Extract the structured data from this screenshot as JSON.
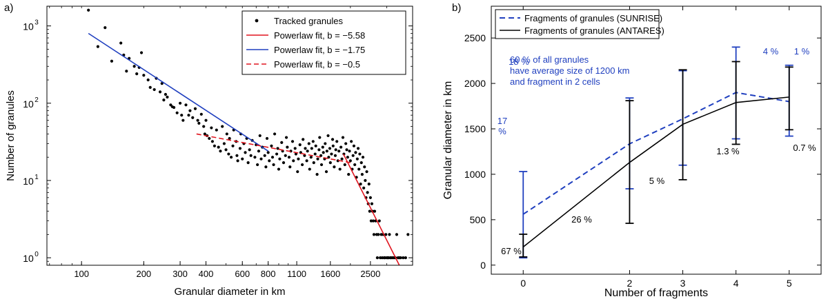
{
  "chart_data": [
    {
      "panel_label": "a)",
      "type": "scatter",
      "xlabel": "Granular diameter in km",
      "ylabel": "Number of granules",
      "x_scale": "log",
      "y_scale": "log",
      "xlim": [
        68,
        4000
      ],
      "ylim": [
        0.8,
        1800
      ],
      "x_ticks": [
        100,
        200,
        300,
        400,
        600,
        800,
        1100,
        1600,
        2500
      ],
      "y_ticks": [
        1,
        10,
        100,
        1000
      ],
      "y_tick_labels": [
        {
          "base": "10",
          "exp": "0"
        },
        {
          "base": "10",
          "exp": "1"
        },
        {
          "base": "10",
          "exp": "2"
        },
        {
          "base": "10",
          "exp": "3"
        }
      ],
      "legend_position": "top-right",
      "legend": [
        {
          "label": "Tracked granules",
          "style": "dot",
          "color": "#000000"
        },
        {
          "label": "Powerlaw fit, b = −5.58",
          "style": "solid",
          "color": "#e0141e"
        },
        {
          "label": "Powerlaw fit, b = −1.75",
          "style": "solid",
          "color": "#1f3fbf"
        },
        {
          "label": "Powerlaw fit, b = −0.5",
          "style": "dashed",
          "color": "#e0141e"
        }
      ],
      "fits": [
        {
          "b": -1.75,
          "x": [
            108,
            800
          ],
          "y": [
            800,
            24
          ],
          "color": "#1f3fbf",
          "dashed": false
        },
        {
          "b": -0.5,
          "x": [
            360,
            2000
          ],
          "y": [
            40,
            17
          ],
          "color": "#e0141e",
          "dashed": true
        },
        {
          "b": -5.58,
          "x": [
            1850,
            3450
          ],
          "y": [
            22,
            0.8
          ],
          "color": "#e0141e",
          "dashed": false
        }
      ],
      "points": [
        [
          108,
          1600
        ],
        [
          120,
          540
        ],
        [
          130,
          950
        ],
        [
          140,
          350
        ],
        [
          155,
          600
        ],
        [
          160,
          420
        ],
        [
          165,
          260
        ],
        [
          170,
          380
        ],
        [
          180,
          300
        ],
        [
          185,
          240
        ],
        [
          190,
          290
        ],
        [
          195,
          450
        ],
        [
          200,
          230
        ],
        [
          210,
          200
        ],
        [
          215,
          160
        ],
        [
          225,
          150
        ],
        [
          230,
          210
        ],
        [
          240,
          140
        ],
        [
          245,
          180
        ],
        [
          250,
          110
        ],
        [
          255,
          130
        ],
        [
          260,
          120
        ],
        [
          270,
          95
        ],
        [
          275,
          90
        ],
        [
          280,
          88
        ],
        [
          290,
          75
        ],
        [
          300,
          100
        ],
        [
          305,
          70
        ],
        [
          310,
          60
        ],
        [
          320,
          95
        ],
        [
          330,
          70
        ],
        [
          335,
          80
        ],
        [
          345,
          65
        ],
        [
          355,
          85
        ],
        [
          365,
          60
        ],
        [
          370,
          55
        ],
        [
          380,
          72
        ],
        [
          390,
          50
        ],
        [
          395,
          40
        ],
        [
          400,
          60
        ],
        [
          405,
          38
        ],
        [
          415,
          35
        ],
        [
          425,
          48
        ],
        [
          430,
          32
        ],
        [
          440,
          28
        ],
        [
          450,
          45
        ],
        [
          460,
          27
        ],
        [
          470,
          24
        ],
        [
          480,
          50
        ],
        [
          490,
          30
        ],
        [
          500,
          25
        ],
        [
          505,
          40
        ],
        [
          515,
          22
        ],
        [
          520,
          35
        ],
        [
          530,
          20
        ],
        [
          540,
          28
        ],
        [
          545,
          45
        ],
        [
          560,
          32
        ],
        [
          565,
          21
        ],
        [
          570,
          18
        ],
        [
          585,
          26
        ],
        [
          590,
          40
        ],
        [
          600,
          19
        ],
        [
          610,
          30
        ],
        [
          620,
          23
        ],
        [
          630,
          35
        ],
        [
          640,
          17
        ],
        [
          650,
          25
        ],
        [
          660,
          21
        ],
        [
          670,
          33
        ],
        [
          690,
          20
        ],
        [
          700,
          29
        ],
        [
          710,
          16
        ],
        [
          720,
          24
        ],
        [
          730,
          38
        ],
        [
          740,
          19
        ],
        [
          750,
          27
        ],
        [
          770,
          21
        ],
        [
          780,
          15
        ],
        [
          790,
          35
        ],
        [
          800,
          23
        ],
        [
          810,
          18
        ],
        [
          830,
          28
        ],
        [
          840,
          20
        ],
        [
          850,
          16
        ],
        [
          860,
          40
        ],
        [
          880,
          22
        ],
        [
          890,
          26
        ],
        [
          900,
          14
        ],
        [
          910,
          19
        ],
        [
          930,
          31
        ],
        [
          940,
          24
        ],
        [
          950,
          17
        ],
        [
          970,
          21
        ],
        [
          980,
          36
        ],
        [
          990,
          27
        ],
        [
          1010,
          20
        ],
        [
          1020,
          15
        ],
        [
          1030,
          24
        ],
        [
          1050,
          32
        ],
        [
          1060,
          18
        ],
        [
          1080,
          26
        ],
        [
          1090,
          22
        ],
        [
          1110,
          13
        ],
        [
          1120,
          19
        ],
        [
          1140,
          29
        ],
        [
          1150,
          23
        ],
        [
          1170,
          16
        ],
        [
          1180,
          34
        ],
        [
          1200,
          21
        ],
        [
          1210,
          26
        ],
        [
          1230,
          18
        ],
        [
          1240,
          24
        ],
        [
          1260,
          30
        ],
        [
          1270,
          14
        ],
        [
          1290,
          20
        ],
        [
          1300,
          26
        ],
        [
          1320,
          32
        ],
        [
          1330,
          17
        ],
        [
          1350,
          22
        ],
        [
          1360,
          28
        ],
        [
          1380,
          12
        ],
        [
          1390,
          19
        ],
        [
          1410,
          25
        ],
        [
          1420,
          36
        ],
        [
          1440,
          21
        ],
        [
          1450,
          16
        ],
        [
          1470,
          27
        ],
        [
          1480,
          23
        ],
        [
          1500,
          19
        ],
        [
          1510,
          30
        ],
        [
          1530,
          13
        ],
        [
          1540,
          24
        ],
        [
          1560,
          38
        ],
        [
          1570,
          20
        ],
        [
          1590,
          26
        ],
        [
          1600,
          17
        ],
        [
          1620,
          22
        ],
        [
          1640,
          34
        ],
        [
          1650,
          28
        ],
        [
          1670,
          15
        ],
        [
          1690,
          21
        ],
        [
          1700,
          25
        ],
        [
          1720,
          32
        ],
        [
          1740,
          18
        ],
        [
          1760,
          24
        ],
        [
          1780,
          14
        ],
        [
          1800,
          27
        ],
        [
          1820,
          19
        ],
        [
          1840,
          36
        ],
        [
          1860,
          22
        ],
        [
          1880,
          16
        ],
        [
          1900,
          30
        ],
        [
          1920,
          25
        ],
        [
          1940,
          20
        ],
        [
          1960,
          12
        ],
        [
          1980,
          24
        ],
        [
          2000,
          18
        ],
        [
          2020,
          32
        ],
        [
          2040,
          14
        ],
        [
          2060,
          21
        ],
        [
          2080,
          28
        ],
        [
          2100,
          16
        ],
        [
          2120,
          23
        ],
        [
          2140,
          11
        ],
        [
          2160,
          19
        ],
        [
          2180,
          26
        ],
        [
          2200,
          14
        ],
        [
          2220,
          22
        ],
        [
          2240,
          9
        ],
        [
          2260,
          17
        ],
        [
          2280,
          12
        ],
        [
          2300,
          20
        ],
        [
          2320,
          8
        ],
        [
          2340,
          15
        ],
        [
          2360,
          10
        ],
        [
          2380,
          6
        ],
        [
          2400,
          13
        ],
        [
          2420,
          7
        ],
        [
          2440,
          5
        ],
        [
          2460,
          9
        ],
        [
          2480,
          4
        ],
        [
          2500,
          6
        ],
        [
          2520,
          3
        ],
        [
          2540,
          5
        ],
        [
          2560,
          4
        ],
        [
          2580,
          3
        ],
        [
          2600,
          2
        ],
        [
          2620,
          4
        ],
        [
          2650,
          3
        ],
        [
          2680,
          2
        ],
        [
          2700,
          1
        ],
        [
          2730,
          2
        ],
        [
          2760,
          3
        ],
        [
          2790,
          1
        ],
        [
          2820,
          2
        ],
        [
          2850,
          1
        ],
        [
          2880,
          2
        ],
        [
          2910,
          1
        ],
        [
          2940,
          1
        ],
        [
          2970,
          2
        ],
        [
          3000,
          1
        ],
        [
          3030,
          1
        ],
        [
          3060,
          1
        ],
        [
          3090,
          2
        ],
        [
          3120,
          1
        ],
        [
          3150,
          1
        ],
        [
          3200,
          1
        ],
        [
          3250,
          1
        ],
        [
          3300,
          1
        ],
        [
          3350,
          2
        ],
        [
          3400,
          1
        ],
        [
          3450,
          1
        ],
        [
          3500,
          1
        ],
        [
          3600,
          1
        ],
        [
          3700,
          1
        ],
        [
          3800,
          2
        ]
      ]
    },
    {
      "panel_label": "b)",
      "type": "line",
      "xlabel": "Number of fragments",
      "ylabel": "Granular diameter in km",
      "xlim": [
        -0.6,
        5.6
      ],
      "ylim": [
        -100,
        2850
      ],
      "x_ticks": [
        0,
        2,
        3,
        4,
        5
      ],
      "y_ticks": [
        0,
        500,
        1000,
        1500,
        2000,
        2500
      ],
      "legend_position": "top-left",
      "categories": [
        0,
        2,
        3,
        4,
        5
      ],
      "series": [
        {
          "name": "Fragments of granules (SUNRISE)",
          "color": "#1f3fbf",
          "dashed": true,
          "values": [
            560,
            1335,
            1610,
            1900,
            1800
          ],
          "err_low": [
            80,
            840,
            1100,
            1390,
            1420
          ],
          "err_high": [
            1030,
            1840,
            2140,
            2400,
            2200
          ],
          "percent_labels": [
            "17\n%",
            "",
            "18 %",
            "4 %",
            "1 %"
          ]
        },
        {
          "name": "Fragments of granules (ANTARES)",
          "color": "#000000",
          "dashed": false,
          "values": [
            200,
            1130,
            1550,
            1790,
            1850
          ],
          "err_low": [
            90,
            460,
            940,
            1330,
            1490
          ],
          "err_high": [
            340,
            1810,
            2150,
            2240,
            2180
          ],
          "percent_labels": [
            "67 %",
            "26 %",
            "5 %",
            "1.3 %",
            "0.7 %"
          ]
        }
      ],
      "annotation": "60 % of all granules\nhave average size of 1200 km\nand fragment in 2 cells"
    }
  ]
}
